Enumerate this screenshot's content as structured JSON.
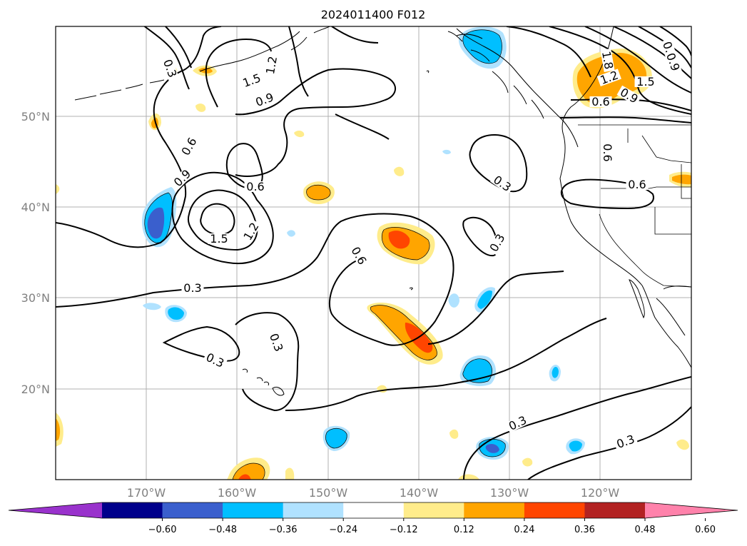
{
  "title": "2024011400 F012",
  "lat_labels": [
    "50°N",
    "40°N",
    "30°N",
    "20°N"
  ],
  "lon_labels": [
    "170°W",
    "160°W",
    "150°W",
    "140°W",
    "130°W",
    "120°W"
  ],
  "colorbar": {
    "ticks": [
      "−0.60",
      "−0.48",
      "−0.36",
      "−0.24",
      "−0.12",
      "0.12",
      "0.24",
      "0.36",
      "0.48",
      "0.60"
    ],
    "colors": [
      "#9932cc",
      "#00008b",
      "#3a5fcd",
      "#00bfff",
      "#b0e2ff",
      "#ffffff",
      "#ffec8b",
      "#ffa500",
      "#ff4500",
      "#b22222",
      "#ff82ab"
    ]
  },
  "contour_labels": [
    "0.3",
    "0.3",
    "0.3",
    "0.3",
    "0.3",
    "0.3",
    "0.3",
    "0.6",
    "0.6",
    "0.6",
    "0.6",
    "0.6",
    "0.9",
    "0.9",
    "0.9",
    "0.9",
    "1.2",
    "1.2",
    "1.2",
    "1.5",
    "1.5",
    "1.5",
    "1.8",
    "0.3",
    "0.6",
    "0.9"
  ]
}
